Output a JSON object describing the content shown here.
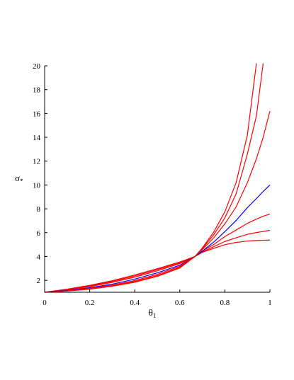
{
  "chart_data": {
    "type": "line",
    "title": "",
    "xlabel": {
      "main": "θ",
      "sub": "1"
    },
    "ylabel": {
      "main": "σ",
      "sub": "*"
    },
    "xlim": [
      0,
      1
    ],
    "ylim": [
      1,
      20
    ],
    "x_ticks": [
      "0",
      "0.2",
      "0.4",
      "0.6",
      "0.8",
      "1"
    ],
    "x_tick_values": [
      0,
      0.2,
      0.4,
      0.6,
      0.8,
      1
    ],
    "y_ticks": [
      "2",
      "4",
      "6",
      "8",
      "10",
      "12",
      "14",
      "16",
      "18",
      "20"
    ],
    "y_tick_values": [
      2,
      4,
      6,
      8,
      10,
      12,
      14,
      16,
      18,
      20
    ],
    "grid": false,
    "legend": "none",
    "x": [
      0,
      0.1,
      0.2,
      0.3,
      0.4,
      0.5,
      0.6,
      0.667,
      0.7,
      0.75,
      0.8,
      0.85,
      0.9,
      0.94,
      0.97,
      1.0
    ],
    "series": [
      {
        "color": "#ff0000",
        "values": [
          1.0,
          1.26,
          1.58,
          1.97,
          2.45,
          2.98,
          3.54,
          4.0,
          4.35,
          4.68,
          4.99,
          5.18,
          5.3,
          5.34,
          5.36,
          5.38
        ]
      },
      {
        "color": "#ff0000",
        "values": [
          1.0,
          1.23,
          1.53,
          1.91,
          2.37,
          2.9,
          3.47,
          4.0,
          4.38,
          4.82,
          5.26,
          5.57,
          5.86,
          6.01,
          6.1,
          6.2
        ]
      },
      {
        "color": "#ff0000",
        "values": [
          1.0,
          1.2,
          1.47,
          1.83,
          2.27,
          2.8,
          3.4,
          4.0,
          4.45,
          5.0,
          5.67,
          6.22,
          6.78,
          7.14,
          7.38,
          7.56
        ]
      },
      {
        "color": "#0000ff",
        "values": [
          1.0,
          1.15,
          1.38,
          1.68,
          2.1,
          2.63,
          3.27,
          4.0,
          4.45,
          5.2,
          6.09,
          7.02,
          8.1,
          8.86,
          9.46,
          10.0
        ]
      },
      {
        "color": "#ff0000",
        "values": [
          1.0,
          1.13,
          1.33,
          1.6,
          1.98,
          2.5,
          3.18,
          4.0,
          4.58,
          5.55,
          6.74,
          8.16,
          10.2,
          12.2,
          14.0,
          16.2
        ]
      },
      {
        "color": "#ff0000",
        "values": [
          1.0,
          1.11,
          1.29,
          1.54,
          1.9,
          2.4,
          3.1,
          4.0,
          4.66,
          5.81,
          7.24,
          9.26,
          12.6,
          15.8,
          20.2,
          null
        ]
      },
      {
        "color": "#ff0000",
        "values": [
          1.0,
          1.1,
          1.26,
          1.5,
          1.84,
          2.33,
          3.03,
          4.0,
          4.72,
          6.03,
          7.75,
          10.2,
          14.2,
          20.2,
          null,
          null
        ]
      }
    ]
  }
}
